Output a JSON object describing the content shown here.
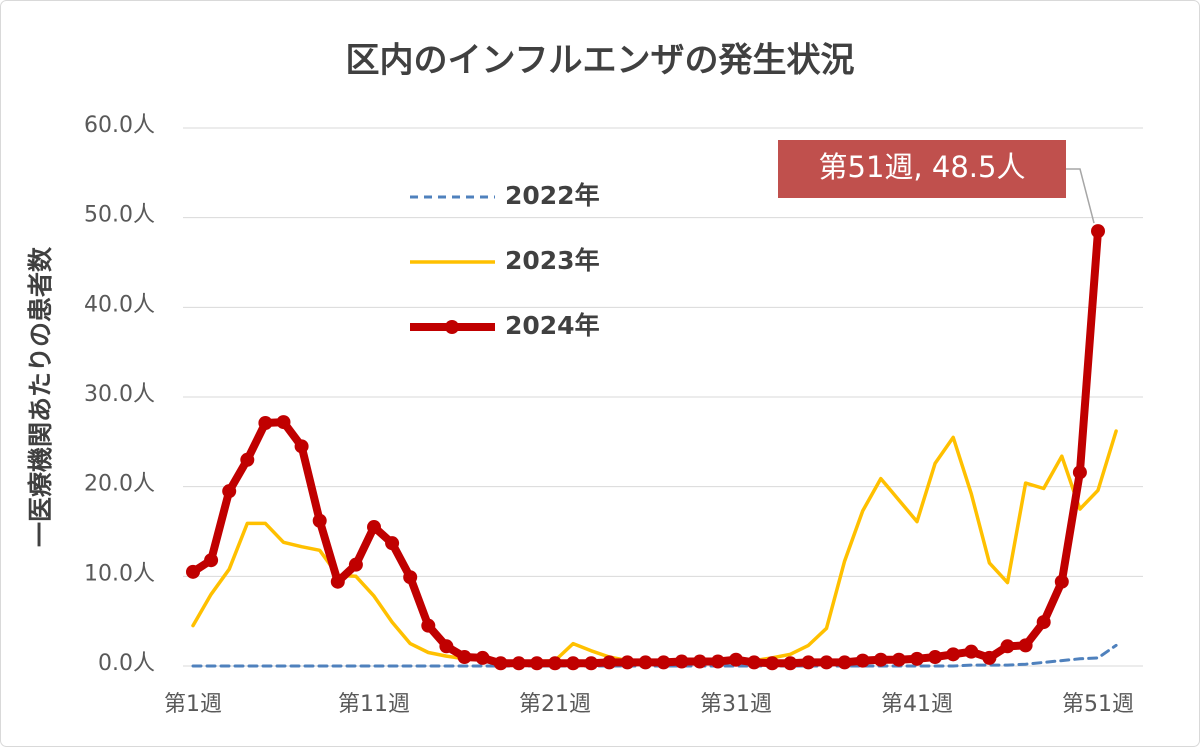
{
  "chart_data": {
    "type": "line",
    "title": "区内のインフルエンザの発生状況",
    "y_label": "一医療機関あたりの患者数",
    "categories": [
      "第1週",
      null,
      null,
      null,
      null,
      null,
      null,
      null,
      null,
      null,
      "第11週",
      null,
      null,
      null,
      null,
      null,
      null,
      null,
      null,
      null,
      "第21週",
      null,
      null,
      null,
      null,
      null,
      null,
      null,
      null,
      null,
      "第31週",
      null,
      null,
      null,
      null,
      null,
      null,
      null,
      null,
      null,
      "第41週",
      null,
      null,
      null,
      null,
      null,
      null,
      null,
      null,
      null,
      "第51週",
      null
    ],
    "ylim": [
      0,
      60
    ],
    "yticks": [
      {
        "value": 0,
        "label": "0.0人"
      },
      {
        "value": 10,
        "label": "10.0人"
      },
      {
        "value": 20,
        "label": "20.0人"
      },
      {
        "value": 30,
        "label": "30.0人"
      },
      {
        "value": 40,
        "label": "40.0人"
      },
      {
        "value": 50,
        "label": "50.0人"
      },
      {
        "value": 60,
        "label": "60.0人"
      }
    ],
    "grid": true,
    "series": [
      {
        "name": "2022年",
        "color": "#4f81bd",
        "dashed": true,
        "values": [
          0,
          0,
          0,
          0,
          0,
          0,
          0,
          0,
          0,
          0,
          0,
          0,
          0,
          0,
          0,
          0,
          0,
          0,
          0,
          0,
          0,
          0,
          0,
          0,
          0,
          0,
          0,
          0,
          0,
          0,
          0,
          0,
          0,
          0,
          0,
          0,
          0,
          0,
          0,
          0,
          0,
          0,
          0,
          0.1,
          0.1,
          0.1,
          0.2,
          0.4,
          0.6,
          0.8,
          0.9,
          2.3
        ]
      },
      {
        "name": "2023年",
        "color": "#ffc000",
        "values": [
          4.5,
          8,
          10.8,
          15.9,
          15.9,
          13.8,
          13.3,
          12.9,
          10.1,
          10,
          7.8,
          4.9,
          2.5,
          1.5,
          1.1,
          0.8,
          0.7,
          0.5,
          0.5,
          0.5,
          0.6,
          2.5,
          1.7,
          1.0,
          0.6,
          0.5,
          0.4,
          0.4,
          0.4,
          0.4,
          0.5,
          0.6,
          0.9,
          1.3,
          2.3,
          4.2,
          11.7,
          17.3,
          20.9,
          18.5,
          16.1,
          22.6,
          25.5,
          19.2,
          11.5,
          9.3,
          20.4,
          19.8,
          23.4,
          17.5,
          19.6,
          26.2
        ]
      },
      {
        "name": "2024年",
        "color": "#c00000",
        "markers": true,
        "values": [
          10.5,
          11.8,
          19.5,
          23,
          27.1,
          27.2,
          24.5,
          16.2,
          9.4,
          11.3,
          15.5,
          13.7,
          9.9,
          4.5,
          2.2,
          1.0,
          0.9,
          0.3,
          0.3,
          0.3,
          0.3,
          0.3,
          0.3,
          0.4,
          0.4,
          0.4,
          0.4,
          0.5,
          0.5,
          0.5,
          0.7,
          0.4,
          0.3,
          0.3,
          0.4,
          0.4,
          0.4,
          0.6,
          0.7,
          0.7,
          0.8,
          1.0,
          1.3,
          1.6,
          0.9,
          2.2,
          2.3,
          4.9,
          9.4,
          21.6,
          48.5,
          null
        ],
        "value_labels": [
          null,
          null,
          null,
          null,
          null,
          null,
          null,
          null,
          null,
          null,
          null,
          null,
          null,
          null,
          null,
          null,
          null,
          null,
          null,
          null,
          null,
          null,
          null,
          null,
          null,
          null,
          null,
          null,
          null,
          null,
          null,
          null,
          null,
          null,
          null,
          null,
          null,
          null,
          null,
          null,
          null,
          null,
          null,
          null,
          null,
          null,
          null,
          null,
          null,
          null,
          "第51週, 48.5人",
          null
        ]
      }
    ]
  }
}
